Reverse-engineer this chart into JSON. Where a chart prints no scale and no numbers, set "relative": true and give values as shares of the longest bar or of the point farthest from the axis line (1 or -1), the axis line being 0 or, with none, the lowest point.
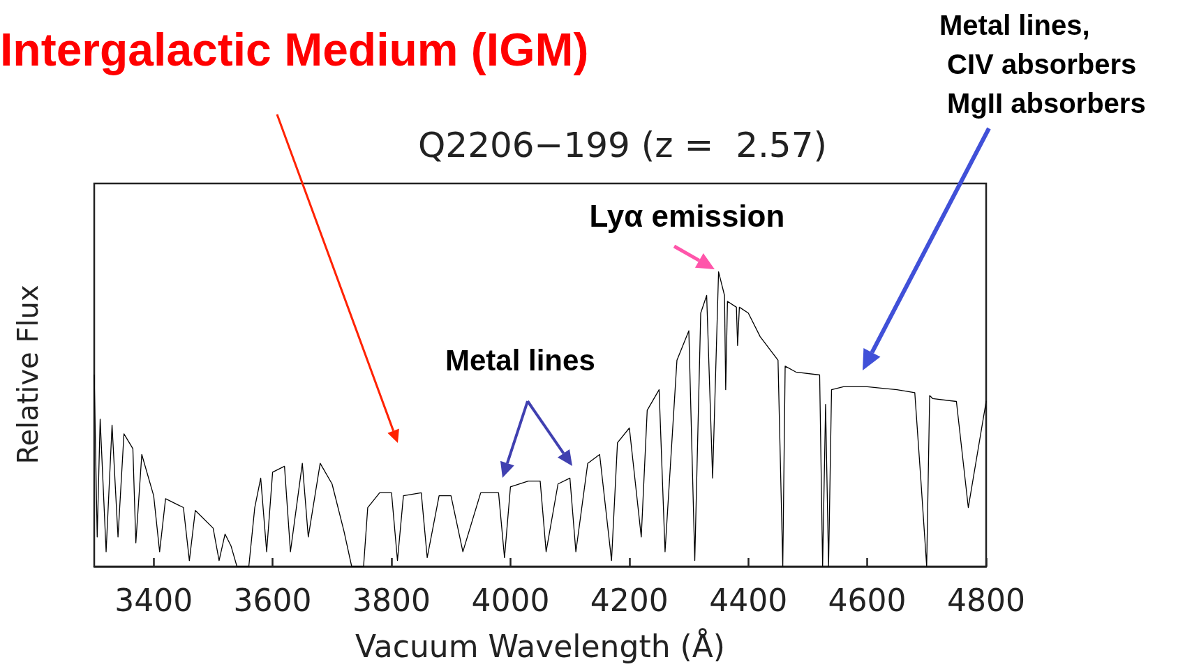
{
  "chart_data": {
    "type": "line",
    "title": "Q2206−199 (z =  2.57)",
    "xlabel": "Vacuum Wavelength (Å)",
    "ylabel": "Relative Flux",
    "relative": true,
    "xlim": [
      3300,
      4800
    ],
    "xticks": [
      3400,
      3600,
      3800,
      4000,
      4200,
      4400,
      4600,
      4800
    ],
    "grid": false,
    "marker": "none",
    "line_style": "solid",
    "annotations": [
      "Intergalactic Medium (IGM)",
      "Metal lines,\n CIV absorbers\n MgII absorbers",
      {
        "text": "Lyα emission",
        "x": 4350,
        "y": 1
      },
      "Metal lines"
    ],
    "series": [
      {
        "color": "#000000",
        "x": [
          3300,
          3305,
          3310,
          3320,
          3330,
          3340,
          3350,
          3365,
          3370,
          3380,
          3400,
          3410,
          3420,
          3450,
          3460,
          3470,
          3500,
          3510,
          3520,
          3530,
          3540,
          3560,
          3570,
          3580,
          3590,
          3600,
          3620,
          3630,
          3650,
          3660,
          3680,
          3700,
          3720,
          3733,
          3753,
          3760,
          3780,
          3800,
          3810,
          3820,
          3850,
          3860,
          3880,
          3900,
          3920,
          3950,
          3980,
          3990,
          4000,
          4030,
          4050,
          4060,
          4080,
          4100,
          4110,
          4130,
          4150,
          4170,
          4180,
          4200,
          4220,
          4230,
          4250,
          4260,
          4280,
          4300,
          4310,
          4320,
          4330,
          4340,
          4350,
          4360,
          4362,
          4365,
          4380,
          4382,
          4385,
          4400,
          4420,
          4450,
          4458,
          4462,
          4480,
          4520,
          4525,
          4530,
          4535,
          4540,
          4560,
          4600,
          4650,
          4680,
          4690,
          4700,
          4705,
          4710,
          4750,
          4770,
          4800
        ],
        "values": [
          0.65,
          0.1,
          0.5,
          0.05,
          0.48,
          0.1,
          0.45,
          0.4,
          0.08,
          0.38,
          0.24,
          0.05,
          0.23,
          0.2,
          0.02,
          0.19,
          0.13,
          0.02,
          0.11,
          0.07,
          0.0,
          0.0,
          0.2,
          0.3,
          0.05,
          0.32,
          0.34,
          0.05,
          0.35,
          0.1,
          0.35,
          0.28,
          0.12,
          0.0,
          0.0,
          0.2,
          0.25,
          0.25,
          0.02,
          0.24,
          0.25,
          0.03,
          0.24,
          0.24,
          0.05,
          0.25,
          0.25,
          0.03,
          0.27,
          0.29,
          0.29,
          0.05,
          0.28,
          0.3,
          0.05,
          0.35,
          0.38,
          0.02,
          0.42,
          0.47,
          0.1,
          0.53,
          0.6,
          0.05,
          0.7,
          0.8,
          0.02,
          0.86,
          0.92,
          0.3,
          1.0,
          0.92,
          0.6,
          0.9,
          0.88,
          0.75,
          0.88,
          0.86,
          0.78,
          0.7,
          0.0,
          0.68,
          0.66,
          0.65,
          0.0,
          0.55,
          0.0,
          0.6,
          0.61,
          0.61,
          0.6,
          0.59,
          0.3,
          0.0,
          0.58,
          0.57,
          0.56,
          0.2,
          0.56
        ]
      }
    ]
  }
}
